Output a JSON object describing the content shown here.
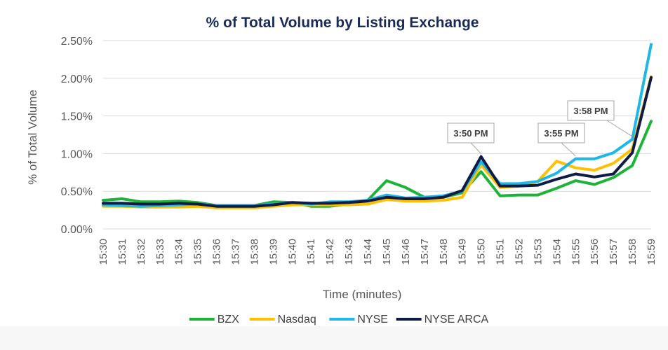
{
  "chart_data": {
    "type": "line",
    "title": "% of Total Volume by Listing Exchange",
    "xlabel": "Time (minutes)",
    "ylabel": "% of Total Volume",
    "ylim": [
      0,
      2.5
    ],
    "yticks": [
      "0.00%",
      "0.50%",
      "1.00%",
      "1.50%",
      "2.00%",
      "2.50%"
    ],
    "ytick_values": [
      0,
      0.5,
      1.0,
      1.5,
      2.0,
      2.5
    ],
    "grid": true,
    "legend_position": "bottom",
    "categories": [
      "15:30",
      "15:31",
      "15:32",
      "15:33",
      "15:34",
      "15:35",
      "15:36",
      "15:37",
      "15:38",
      "15:39",
      "15:40",
      "15:41",
      "15:42",
      "15:43",
      "15:44",
      "15:45",
      "15:46",
      "15:47",
      "15:48",
      "15:49",
      "15:50",
      "15:51",
      "15:52",
      "15:53",
      "15:54",
      "15:55",
      "15:56",
      "15:57",
      "15:58",
      "15:59"
    ],
    "series": [
      {
        "name": "BZX",
        "color": "#1db33a",
        "values": [
          0.38,
          0.4,
          0.36,
          0.36,
          0.37,
          0.35,
          0.31,
          0.31,
          0.31,
          0.36,
          0.35,
          0.3,
          0.3,
          0.33,
          0.38,
          0.64,
          0.55,
          0.42,
          0.42,
          0.48,
          0.76,
          0.44,
          0.45,
          0.45,
          0.54,
          0.64,
          0.59,
          0.68,
          0.84,
          1.43
        ]
      },
      {
        "name": "Nasdaq",
        "color": "#ffc000",
        "values": [
          0.3,
          0.3,
          0.29,
          0.29,
          0.29,
          0.3,
          0.28,
          0.28,
          0.28,
          0.3,
          0.32,
          0.32,
          0.32,
          0.32,
          0.33,
          0.39,
          0.37,
          0.37,
          0.38,
          0.42,
          0.85,
          0.55,
          0.57,
          0.63,
          0.9,
          0.81,
          0.78,
          0.87,
          1.06,
          2.02
        ]
      },
      {
        "name": "NYSE",
        "color": "#1eb7e6",
        "values": [
          0.32,
          0.31,
          0.3,
          0.31,
          0.32,
          0.33,
          0.31,
          0.31,
          0.31,
          0.33,
          0.35,
          0.33,
          0.36,
          0.36,
          0.38,
          0.45,
          0.41,
          0.42,
          0.44,
          0.5,
          0.89,
          0.6,
          0.6,
          0.63,
          0.74,
          0.93,
          0.93,
          1.01,
          1.19,
          2.45
        ]
      },
      {
        "name": "NYSE ARCA",
        "color": "#0f1b47",
        "values": [
          0.34,
          0.34,
          0.33,
          0.33,
          0.34,
          0.33,
          0.3,
          0.3,
          0.3,
          0.32,
          0.35,
          0.34,
          0.34,
          0.35,
          0.37,
          0.42,
          0.4,
          0.4,
          0.42,
          0.51,
          0.96,
          0.57,
          0.57,
          0.58,
          0.66,
          0.73,
          0.69,
          0.73,
          1.01,
          2.01
        ]
      }
    ],
    "annotations": [
      {
        "text": "3:50 PM",
        "category": "15:50",
        "value": 0.96
      },
      {
        "text": "3:55 PM",
        "category": "15:55",
        "value": 0.93
      },
      {
        "text": "3:58 PM",
        "category": "15:58",
        "value": 1.19
      }
    ]
  }
}
